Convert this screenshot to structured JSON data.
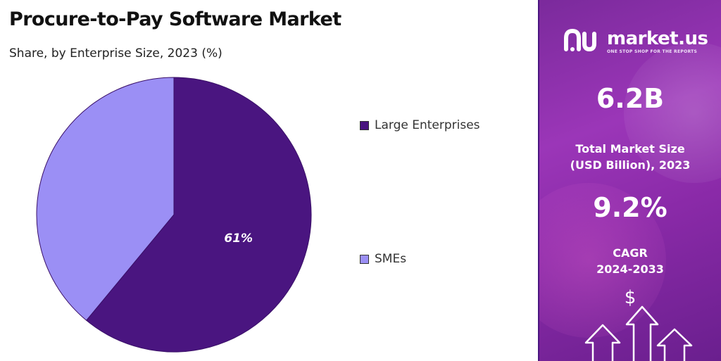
{
  "chart_data": {
    "type": "pie",
    "title": "Procure-to-Pay Software Market",
    "subtitle": "Share, by Enterprise Size, 2023 (%)",
    "series": [
      {
        "name": "Large Enterprises",
        "value": 61,
        "label": "61%",
        "color": "#4a1580"
      },
      {
        "name": "SMEs",
        "value": 39,
        "label": "",
        "color": "#9b8ff5"
      }
    ],
    "legend_position": "right"
  },
  "brand": {
    "name": "market.us",
    "tagline": "ONE STOP SHOP FOR THE REPORTS",
    "logo_icon": "market-us-logo-icon"
  },
  "stats": {
    "market_size_value": "6.2B",
    "market_size_label_1": "Total Market Size",
    "market_size_label_2": "(USD Billion), 2023",
    "cagr_value": "9.2%",
    "cagr_label_1": "CAGR",
    "cagr_label_2": "2024-2033"
  },
  "decor": {
    "dollar_symbol": "$"
  },
  "colors": {
    "accent": "#4a1580",
    "panel": "#8a2aa8"
  }
}
